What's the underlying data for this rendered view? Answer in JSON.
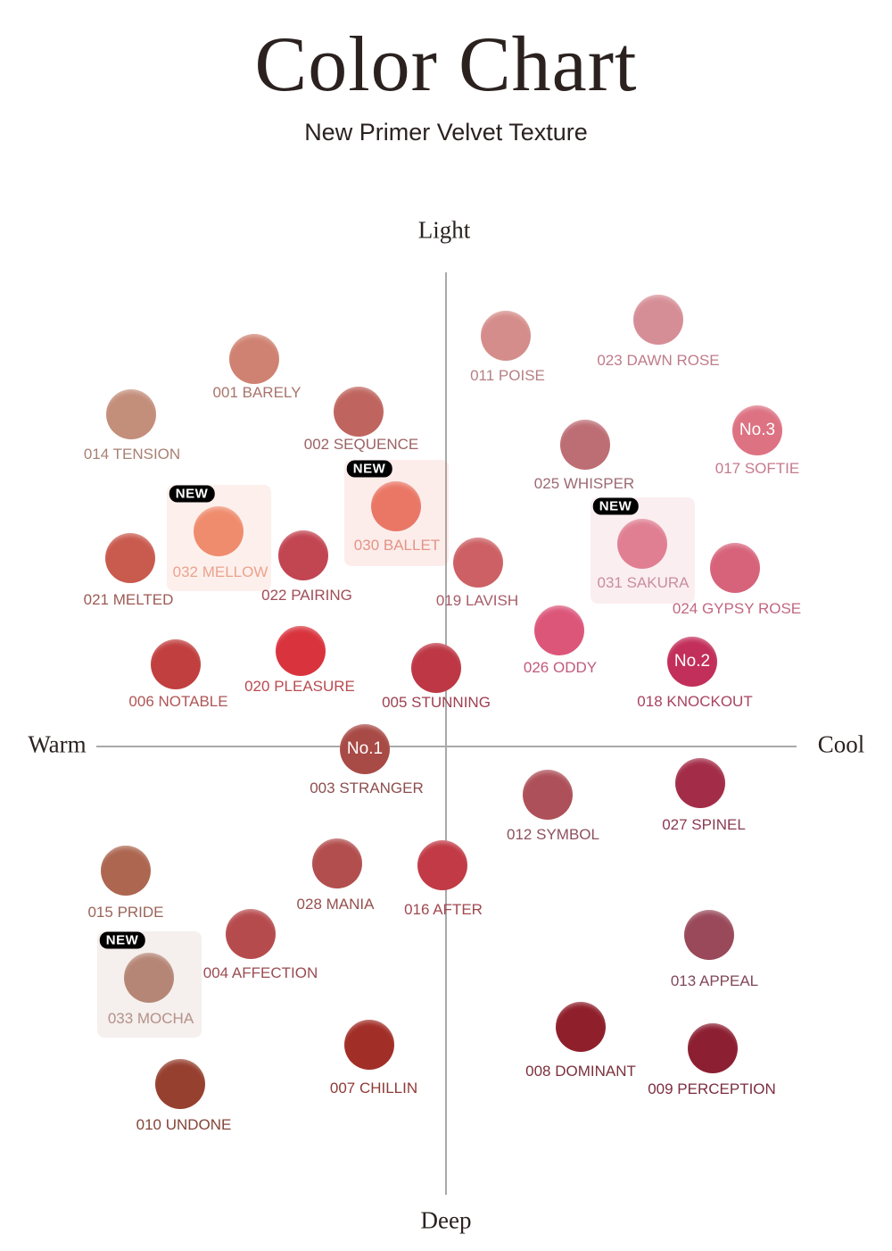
{
  "title": "Color Chart",
  "subtitle": "New Primer Velvet Texture",
  "axes": {
    "top": "Light",
    "bottom": "Deep",
    "left": "Warm",
    "right": "Cool"
  },
  "new_badge": "NEW",
  "shades": [
    {
      "name": "001 BARELY",
      "color": "#cf8272",
      "label_color": "#a9746c"
    },
    {
      "name": "014 TENSION",
      "color": "#c38e7a",
      "label_color": "#a98073"
    },
    {
      "name": "002 SEQUENCE",
      "color": "#bf645e",
      "label_color": "#9c6263"
    },
    {
      "name": "021 MELTED",
      "color": "#c95a4e",
      "label_color": "#9c5a55"
    },
    {
      "name": "032 MELLOW",
      "color": "#ef8c6e",
      "label_color": "#eba28e",
      "is_new": true
    },
    {
      "name": "022 PAIRING",
      "color": "#c24552",
      "label_color": "#a04d57"
    },
    {
      "name": "030 BALLET",
      "color": "#ea7766",
      "label_color": "#e59385",
      "is_new": true
    },
    {
      "name": "019 LAVISH",
      "color": "#cc6064",
      "label_color": "#a85d69"
    },
    {
      "name": "011 POISE",
      "color": "#d48d8a",
      "label_color": "#b58084"
    },
    {
      "name": "023 DAWN ROSE",
      "color": "#d68e96",
      "label_color": "#bf7c8a"
    },
    {
      "name": "025 WHISPER",
      "color": "#bd6d74",
      "label_color": "#9c6a73"
    },
    {
      "name": "017 SOFTIE",
      "color": "#dd7282",
      "label_color": "#c67a8d",
      "badge": "No.3"
    },
    {
      "name": "031 SAKURA",
      "color": "#e07f92",
      "label_color": "#c88e9e",
      "is_new": true
    },
    {
      "name": "024 GYPSY ROSE",
      "color": "#d7637a",
      "label_color": "#c26782"
    },
    {
      "name": "026 ODDY",
      "color": "#dc567a",
      "label_color": "#c15a7b"
    },
    {
      "name": "018 KNOCKOUT",
      "color": "#c22f5a",
      "label_color": "#a84260",
      "badge": "No.2"
    },
    {
      "name": "006 NOTABLE",
      "color": "#c13f3f",
      "label_color": "#b05555"
    },
    {
      "name": "020 PLEASURE",
      "color": "#d9343e",
      "label_color": "#b84b50"
    },
    {
      "name": "005 STUNNING",
      "color": "#bd3745",
      "label_color": "#9e4050"
    },
    {
      "name": "003 STRANGER",
      "color": "#a84a45",
      "label_color": "#8e4d4d",
      "badge": "No.1"
    },
    {
      "name": "012 SYMBOL",
      "color": "#ae5059",
      "label_color": "#8e505c"
    },
    {
      "name": "027 SPINEL",
      "color": "#a32d48",
      "label_color": "#8a3a52"
    },
    {
      "name": "015 PRIDE",
      "color": "#ad6650",
      "label_color": "#9a6458"
    },
    {
      "name": "028 MANIA",
      "color": "#b24e4d",
      "label_color": "#96504f"
    },
    {
      "name": "016 AFTER",
      "color": "#c13a45",
      "label_color": "#a14851"
    },
    {
      "name": "004 AFFECTION",
      "color": "#b64b4e",
      "label_color": "#9a4c52"
    },
    {
      "name": "033 MOCHA",
      "color": "#b58676",
      "label_color": "#b49189",
      "is_new": true
    },
    {
      "name": "013 APPEAL",
      "color": "#99495a",
      "label_color": "#82485a"
    },
    {
      "name": "008 DOMINANT",
      "color": "#8f1f2b",
      "label_color": "#7b303c"
    },
    {
      "name": "009 PERCEPTION",
      "color": "#8d1f32",
      "label_color": "#7c2d40"
    },
    {
      "name": "007 CHILLIN",
      "color": "#a22e28",
      "label_color": "#8d3a37"
    },
    {
      "name": "010 UNDONE",
      "color": "#96402f",
      "label_color": "#834539"
    }
  ]
}
